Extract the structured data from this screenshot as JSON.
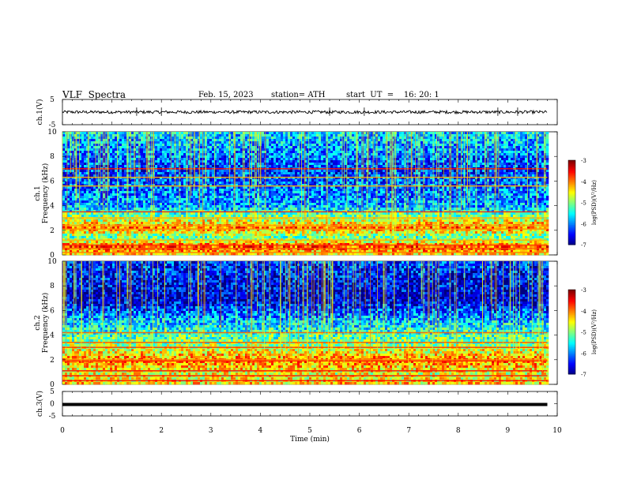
{
  "header": {
    "title": "VLF  Spectra",
    "date": "Feb. 15, 2023",
    "station": "station= ATH",
    "start_ut": "start  UT  =    16: 20: 1"
  },
  "chart_data": [
    {
      "type": "line",
      "name": "ch1-waveform",
      "ylabel": "ch.1(V)",
      "ylim": [
        -5,
        5
      ],
      "y_ticks": [
        "5",
        "-5"
      ],
      "xlim": [
        0,
        10
      ],
      "trace": {
        "x_start": 0,
        "x_end": 9.8,
        "mean": 0,
        "amplitude": 0.6,
        "spike_times": [
          1.5,
          2.0,
          5.4,
          6.1,
          8.8,
          9.2
        ]
      }
    },
    {
      "type": "heatmap",
      "name": "ch1-spectrogram",
      "ylabel": "ch.1\nFrequency  (kHz)",
      "ylim": [
        0,
        10
      ],
      "y_ticks": [
        "0",
        "2",
        "4",
        "6",
        "8",
        "10"
      ],
      "xlim": [
        0,
        10
      ],
      "data_x_end": 9.8,
      "colorbar": {
        "label": "log(PSD)(V²/Hz)",
        "range": [
          -7,
          -3
        ],
        "ticks": [
          "-3",
          "-4",
          "-5",
          "-6",
          "-7"
        ]
      },
      "bands_khz": [
        0.2,
        0.5,
        0.8,
        1.2,
        2.1,
        2.4,
        3.0,
        3.5,
        5.6,
        6.3,
        7.0
      ],
      "spectral_profile_log_psd": [
        [
          0,
          -4.5
        ],
        [
          0.8,
          -3.8
        ],
        [
          1.5,
          -5.2
        ],
        [
          2.3,
          -4.0
        ],
        [
          4,
          -5.8
        ],
        [
          7,
          -6.3
        ],
        [
          10,
          -5.6
        ]
      ]
    },
    {
      "type": "heatmap",
      "name": "ch2-spectrogram",
      "ylabel": "ch.2\nFrequency  (kHz)",
      "ylim": [
        0,
        10
      ],
      "y_ticks": [
        "0",
        "2",
        "4",
        "6",
        "8",
        "10"
      ],
      "xlim": [
        0,
        10
      ],
      "data_x_end": 9.8,
      "colorbar": {
        "label": "log(PSD)(V²/Hz)",
        "range": [
          -7,
          -3
        ],
        "ticks": [
          "-3",
          "-4",
          "-5",
          "-6",
          "-7"
        ]
      },
      "bands_khz": [
        0.3,
        0.7,
        1.1,
        1.9,
        2.0,
        3.0,
        3.4,
        4.2
      ],
      "spectral_profile_log_psd": [
        [
          0,
          -4.3
        ],
        [
          1,
          -4.6
        ],
        [
          2,
          -4.0
        ],
        [
          3.5,
          -5.0
        ],
        [
          5,
          -5.6
        ],
        [
          7,
          -6.7
        ],
        [
          10,
          -6.3
        ]
      ]
    },
    {
      "type": "line",
      "name": "ch3-waveform",
      "ylabel": "ch.3(V)",
      "xlabel": "Time  (min)",
      "ylim": [
        -5,
        5
      ],
      "y_ticks": [
        "5",
        "0",
        "-5"
      ],
      "xlim": [
        0,
        10
      ],
      "x_ticks": [
        "0",
        "1",
        "2",
        "3",
        "4",
        "5",
        "6",
        "7",
        "8",
        "9",
        "10"
      ],
      "trace": {
        "x_start": 0,
        "x_end": 9.8,
        "value": 0
      }
    }
  ]
}
